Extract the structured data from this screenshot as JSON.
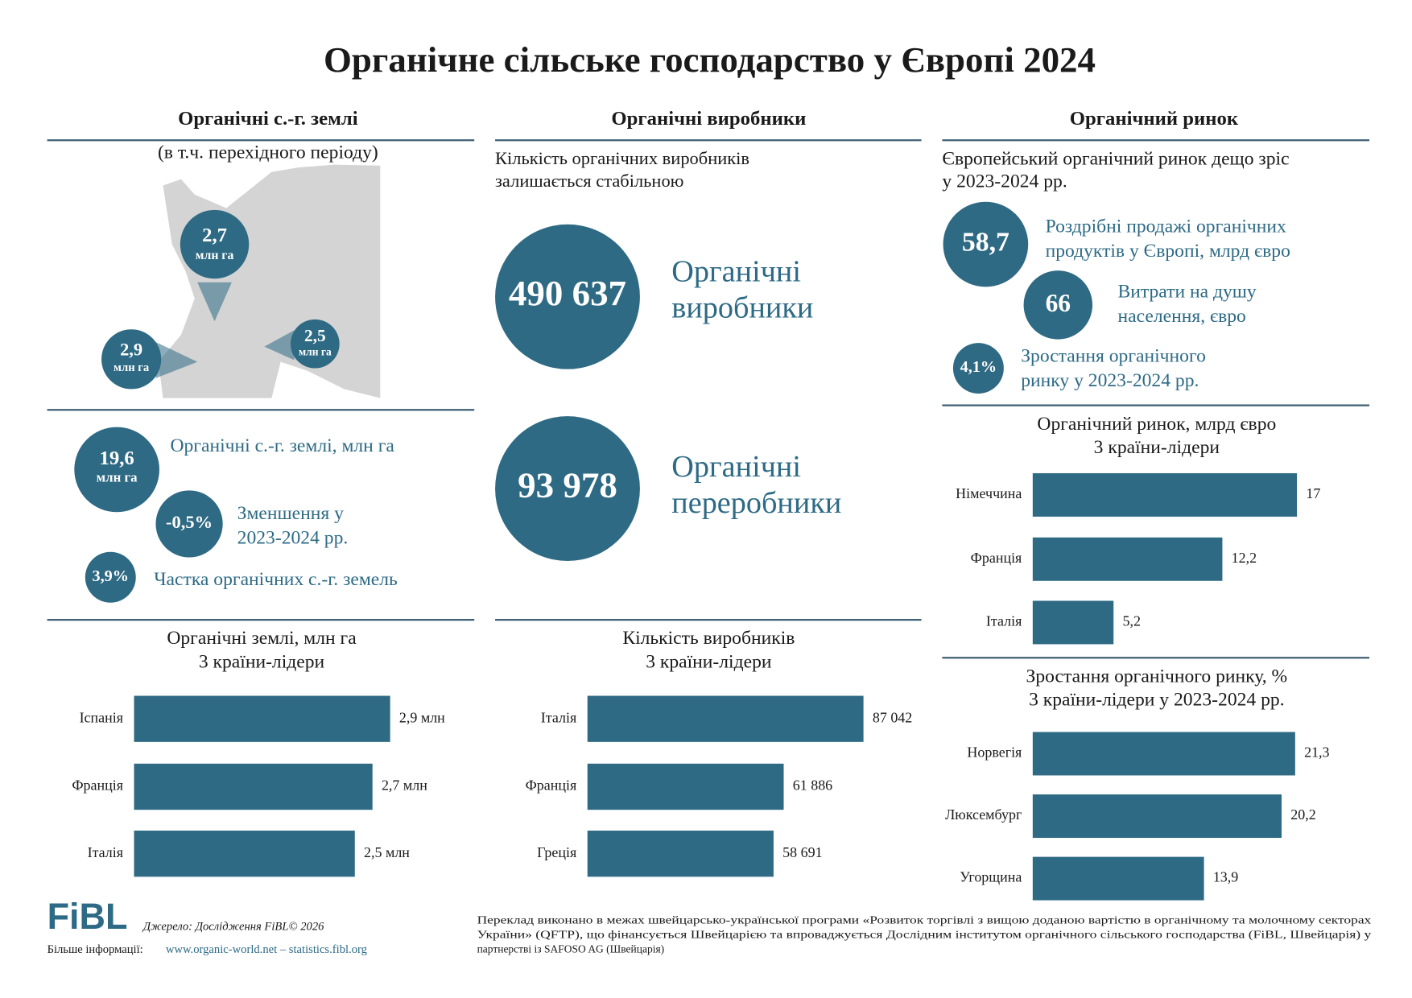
{
  "title": "Органічне сільське господарство у Європі 2024",
  "land": {
    "heading": "Органічні с.-г. землі",
    "subheading": "(в т.ч. перехідного періоду)",
    "map_markers": [
      {
        "value": "2,7",
        "unit": "млн га"
      },
      {
        "value": "2,9",
        "unit": "млн га"
      },
      {
        "value": "2,5",
        "unit": "млн га"
      }
    ],
    "stats": [
      {
        "value": "19,6",
        "unit": "млн га",
        "label": [
          "Органічні с.-г. землі, млн га"
        ]
      },
      {
        "value": "-0,5%",
        "label": [
          "Зменшення у",
          "2023-2024 рр."
        ]
      },
      {
        "value": "3,9%",
        "label": [
          "Частка органічних с.-г. земель"
        ]
      }
    ]
  },
  "producers": {
    "heading": "Органічні виробники",
    "intro": [
      "Кількість органічних виробників",
      "залишається стабільною"
    ],
    "stats": [
      {
        "value": "490 637",
        "label": [
          "Органічні",
          "виробники"
        ]
      },
      {
        "value": "93 978",
        "label": [
          "Органічні",
          "переробники"
        ]
      }
    ]
  },
  "market": {
    "heading": "Органічний ринок",
    "intro": [
      "Європейський органічний ринок дещо зріс",
      "у 2023-2024 рр."
    ],
    "stats": [
      {
        "value": "58,7",
        "label": [
          "Роздрібні продажі органічних",
          "продуктів у Європі, млрд євро"
        ]
      },
      {
        "value": "66",
        "label": [
          "Витрати на душу",
          "населення, євро"
        ]
      },
      {
        "value": "4,1%",
        "label": [
          "Зростання органічного",
          "ринку у 2023-2024 рр."
        ]
      }
    ]
  },
  "chart_data": [
    {
      "type": "bar",
      "orientation": "horizontal",
      "title": [
        "Органічні землі, млн га",
        "3 країни-лідери"
      ],
      "categories": [
        "Іспанія",
        "Франція",
        "Італія"
      ],
      "values": [
        2.9,
        2.7,
        2.5
      ],
      "value_labels": [
        "2,9 млн",
        "2,7 млн",
        "2,5 млн"
      ],
      "color": "#2e6a84"
    },
    {
      "type": "bar",
      "orientation": "horizontal",
      "title": [
        "Кількість виробників",
        "3 країни-лідери"
      ],
      "categories": [
        "Італія",
        "Франція",
        "Греція"
      ],
      "values": [
        87042,
        61886,
        58691
      ],
      "value_labels": [
        "87 042",
        "61 886",
        "58 691"
      ],
      "color": "#2e6a84"
    },
    {
      "type": "bar",
      "orientation": "horizontal",
      "title": [
        "Органічний ринок, млрд євро",
        "3 країни-лідери"
      ],
      "categories": [
        "Німеччина",
        "Франція",
        "Італія"
      ],
      "values": [
        17,
        12.2,
        5.2
      ],
      "value_labels": [
        "17",
        "12,2",
        "5,2"
      ],
      "color": "#2e6a84"
    },
    {
      "type": "bar",
      "orientation": "horizontal",
      "title": [
        "Зростання органічного ринку, %",
        "3 країни-лідери у 2023-2024 рр."
      ],
      "categories": [
        "Норвегія",
        "Люксембург",
        "Угорщина"
      ],
      "values": [
        21.3,
        20.2,
        13.9
      ],
      "value_labels": [
        "21,3",
        "20,2",
        "13,9"
      ],
      "color": "#2e6a84"
    }
  ],
  "footer": {
    "logo": "FiBL",
    "source": "Джерело: Дослідження FiBL© 2026",
    "more_label": "Більше інформації:",
    "more_links": "www.organic-world.net – statistics.fibl.org",
    "note": [
      "Переклад виконано в межах швейцарсько-української програми «Розвиток торгівлі з вищою доданою вартістю в органічному та молочному секторах",
      "України» (QFTP), що фінансується Швейцарією та впроваджується Дослідним інститутом органічного сільського господарства (FiBL, Швейцарія) у",
      "партнерстві із SAFOSO AG (Швейцарія)"
    ]
  }
}
